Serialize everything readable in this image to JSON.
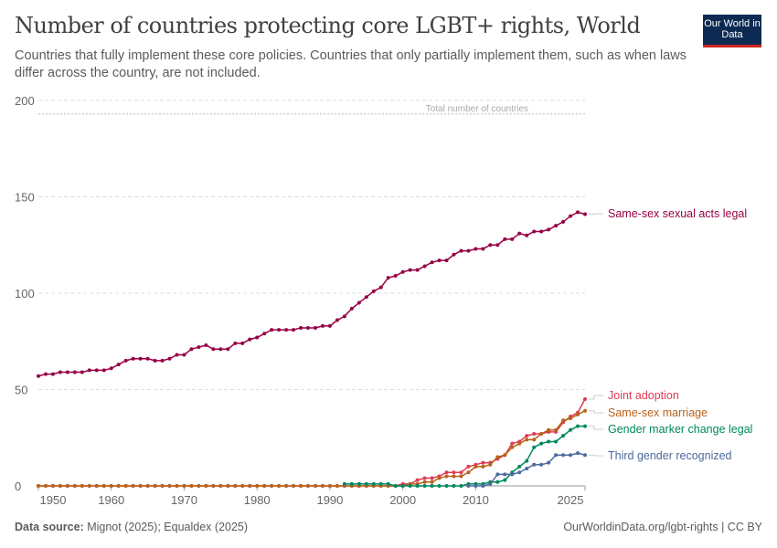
{
  "header": {
    "title": "Number of countries protecting core LGBT+ rights, World",
    "subtitle": "Countries that fully implement these core policies. Countries that only partially implement them, such as when laws differ across the country, are not included.",
    "logo": "Our World in Data"
  },
  "footer": {
    "source_label": "Data source:",
    "source": "Mignot (2025); Equaldex (2025)",
    "url": "OurWorldinData.org/lgbt-rights | CC BY"
  },
  "chart_data": {
    "type": "line",
    "x_start": 1950,
    "x_end": 2025,
    "ylim": [
      0,
      200
    ],
    "yticks": [
      0,
      50,
      100,
      150,
      200
    ],
    "xticks": [
      1950,
      1960,
      1970,
      1980,
      1990,
      2000,
      2010,
      2025
    ],
    "grid": true,
    "reference_line": {
      "label": "Total number of countries",
      "value": 193
    },
    "series": [
      {
        "name": "Same-sex sexual acts legal",
        "color": "#970046",
        "start": 1950,
        "values": [
          57,
          58,
          58,
          59,
          59,
          59,
          59,
          60,
          60,
          60,
          61,
          63,
          65,
          66,
          66,
          66,
          65,
          65,
          66,
          68,
          68,
          71,
          72,
          73,
          71,
          71,
          71,
          74,
          74,
          76,
          77,
          79,
          81,
          81,
          81,
          81,
          82,
          82,
          82,
          83,
          83,
          86,
          88,
          92,
          95,
          98,
          101,
          103,
          108,
          109,
          111,
          112,
          112,
          114,
          116,
          117,
          117,
          120,
          122,
          122,
          123,
          123,
          125,
          125,
          128,
          128,
          131,
          130,
          132,
          132,
          133,
          135,
          137,
          140,
          142,
          141
        ]
      },
      {
        "name": "Joint adoption",
        "color": "#e03a55",
        "start": 1950,
        "values": [
          0,
          0,
          0,
          0,
          0,
          0,
          0,
          0,
          0,
          0,
          0,
          0,
          0,
          0,
          0,
          0,
          0,
          0,
          0,
          0,
          0,
          0,
          0,
          0,
          0,
          0,
          0,
          0,
          0,
          0,
          0,
          0,
          0,
          0,
          0,
          0,
          0,
          0,
          0,
          0,
          0,
          0,
          0,
          0,
          0,
          0,
          0,
          0,
          0,
          0,
          1,
          1,
          3,
          4,
          4,
          5,
          7,
          7,
          7,
          10,
          11,
          12,
          12,
          14,
          16,
          22,
          23,
          26,
          27,
          27,
          28,
          28,
          33,
          36,
          38,
          45
        ]
      },
      {
        "name": "Same-sex marriage",
        "color": "#b8621a",
        "start": 1950,
        "values": [
          0,
          0,
          0,
          0,
          0,
          0,
          0,
          0,
          0,
          0,
          0,
          0,
          0,
          0,
          0,
          0,
          0,
          0,
          0,
          0,
          0,
          0,
          0,
          0,
          0,
          0,
          0,
          0,
          0,
          0,
          0,
          0,
          0,
          0,
          0,
          0,
          0,
          0,
          0,
          0,
          0,
          0,
          0,
          0,
          0,
          0,
          0,
          0,
          0,
          0,
          0,
          1,
          1,
          2,
          2,
          4,
          5,
          5,
          5,
          7,
          10,
          10,
          11,
          15,
          16,
          20,
          22,
          24,
          24,
          27,
          29,
          29,
          34,
          35,
          37,
          39
        ]
      },
      {
        "name": "Gender marker change legal",
        "color": "#00875e",
        "start": 1992,
        "values": [
          1,
          1,
          1,
          1,
          1,
          1,
          1,
          0,
          0,
          0,
          0,
          0,
          0,
          0,
          0,
          0,
          0,
          1,
          1,
          1,
          2,
          2,
          3,
          7,
          10,
          13,
          20,
          22,
          23,
          23,
          26,
          29,
          31,
          31
        ]
      },
      {
        "name": "Third gender recognized",
        "color": "#4c6a9c",
        "start": 2009,
        "values": [
          0,
          0,
          0,
          1,
          6,
          6,
          6,
          7,
          9,
          11,
          11,
          12,
          16,
          16,
          16,
          17,
          16
        ]
      }
    ]
  }
}
